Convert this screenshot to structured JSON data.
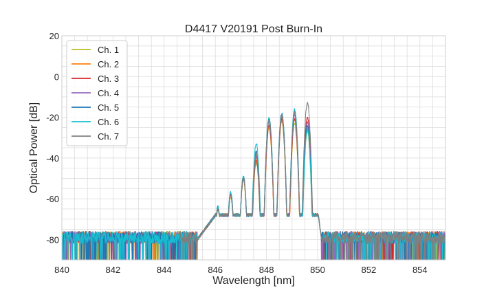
{
  "chart_data": {
    "type": "line",
    "title": "D4417 V20191 Post Burn-In",
    "xlabel": "Wavelength [nm]",
    "ylabel": "Optical Power [dB]",
    "xlim": [
      840,
      855
    ],
    "ylim": [
      -90,
      20
    ],
    "xticks": [
      840,
      842,
      844,
      846,
      848,
      850,
      852,
      854
    ],
    "yticks": [
      20,
      0,
      -20,
      -40,
      -60,
      -80
    ],
    "grid": true,
    "legend_position": "top-left",
    "noise_floor": -79,
    "series": [
      {
        "name": "Ch. 1",
        "color": "#bcbd22",
        "noise_start": 840.0,
        "peaks": [
          [
            846.1,
            -65
          ],
          [
            846.6,
            -59
          ],
          [
            847.1,
            -51
          ],
          [
            847.6,
            -42
          ],
          [
            848.1,
            -25
          ],
          [
            848.6,
            -22
          ],
          [
            849.1,
            -23
          ],
          [
            849.6,
            -27
          ]
        ]
      },
      {
        "name": "Ch. 2",
        "color": "#ff7f0e",
        "noise_start": 840.0,
        "peaks": [
          [
            846.1,
            -64
          ],
          [
            846.6,
            -58
          ],
          [
            847.1,
            -50
          ],
          [
            847.6,
            -40
          ],
          [
            848.1,
            -24
          ],
          [
            848.6,
            -20
          ],
          [
            849.1,
            -21
          ],
          [
            849.6,
            -25
          ]
        ]
      },
      {
        "name": "Ch. 3",
        "color": "#d62728",
        "noise_start": 840.0,
        "peaks": [
          [
            846.1,
            -65
          ],
          [
            846.6,
            -58
          ],
          [
            847.1,
            -50
          ],
          [
            847.6,
            -41
          ],
          [
            848.1,
            -24
          ],
          [
            848.6,
            -21
          ],
          [
            849.1,
            -21
          ],
          [
            849.6,
            -20
          ]
        ]
      },
      {
        "name": "Ch. 4",
        "color": "#9467bd",
        "noise_start": 840.0,
        "peaks": [
          [
            846.1,
            -65
          ],
          [
            846.6,
            -58
          ],
          [
            847.1,
            -50
          ],
          [
            847.6,
            -39
          ],
          [
            848.1,
            -22
          ],
          [
            848.6,
            -19
          ],
          [
            849.1,
            -19
          ],
          [
            849.6,
            -22
          ]
        ]
      },
      {
        "name": "Ch. 5",
        "color": "#1f77b4",
        "noise_start": 840.0,
        "peaks": [
          [
            846.1,
            -64
          ],
          [
            846.6,
            -57
          ],
          [
            847.1,
            -49
          ],
          [
            847.6,
            -37
          ],
          [
            848.1,
            -21
          ],
          [
            848.6,
            -18
          ],
          [
            849.1,
            -17
          ],
          [
            849.6,
            -24
          ]
        ]
      },
      {
        "name": "Ch. 6",
        "color": "#17becf",
        "noise_start": 840.0,
        "peaks": [
          [
            846.1,
            -64
          ],
          [
            846.6,
            -57
          ],
          [
            847.1,
            -49
          ],
          [
            847.6,
            -33
          ],
          [
            848.1,
            -20
          ],
          [
            848.6,
            -19
          ],
          [
            849.1,
            -16
          ],
          [
            849.6,
            -26
          ]
        ]
      },
      {
        "name": "Ch. 7",
        "color": "#7f7f7f",
        "noise_start": 844.6,
        "peaks": [
          [
            846.1,
            -65
          ],
          [
            846.6,
            -58
          ],
          [
            847.1,
            -50
          ],
          [
            847.6,
            -38
          ],
          [
            848.1,
            -21
          ],
          [
            848.6,
            -19
          ],
          [
            849.1,
            -18
          ],
          [
            849.6,
            -13
          ]
        ]
      }
    ]
  }
}
